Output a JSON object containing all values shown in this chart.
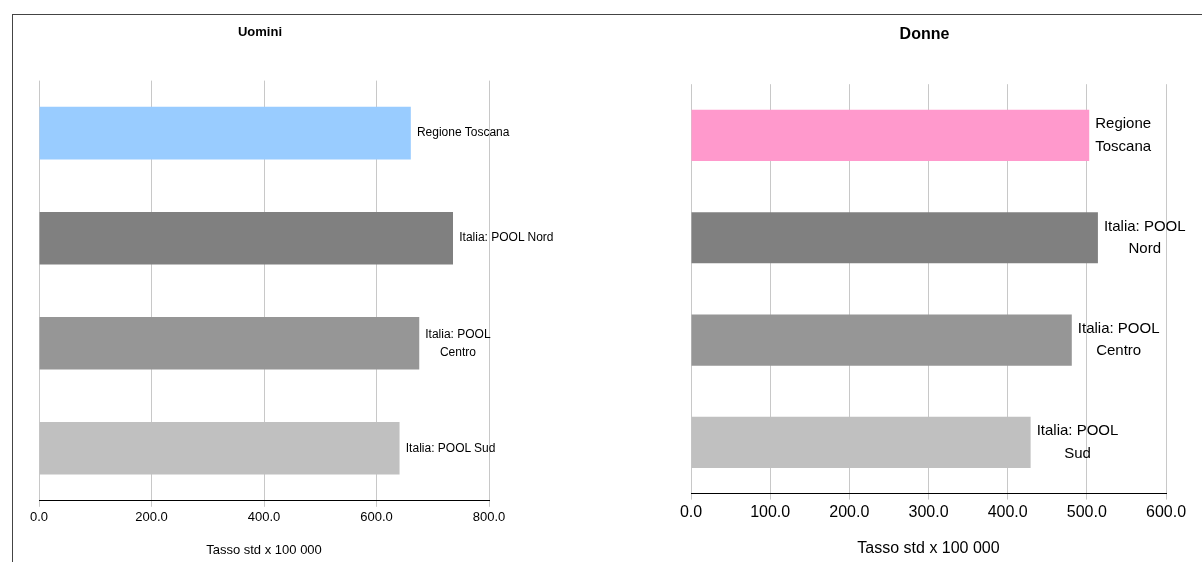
{
  "chart_data": [
    {
      "type": "bar",
      "orientation": "horizontal",
      "title": "Uomini",
      "xlabel": "Tasso std x 100 000",
      "categories": [
        "Regione Toscana",
        "Italia: POOL Nord",
        "Italia: POOL Centro",
        "Italia: POOL Sud"
      ],
      "values": [
        661,
        736,
        676,
        641
      ],
      "colors": [
        "#99ccff",
        "#808080",
        "#969696",
        "#c0c0c0"
      ],
      "xlim": [
        0,
        800
      ],
      "xticks": [
        {
          "value": 0,
          "label": "0.0"
        },
        {
          "value": 200,
          "label": "200.0"
        },
        {
          "value": 400,
          "label": "400.0"
        },
        {
          "value": 600,
          "label": "600.0"
        },
        {
          "value": 800,
          "label": "800.0"
        }
      ],
      "grid": "x",
      "tick_labels": "x",
      "legend": false
    },
    {
      "type": "bar",
      "orientation": "horizontal",
      "title": "Donne",
      "xlabel": "Tasso std x 100 000",
      "categories": [
        "Regione Toscana",
        "Italia: POOL Nord",
        "Italia: POOL Centro",
        "Italia: POOL Sud"
      ],
      "values": [
        503,
        514,
        481,
        429
      ],
      "colors": [
        "#ff99cc",
        "#808080",
        "#969696",
        "#c0c0c0"
      ],
      "xlim": [
        0,
        600
      ],
      "xticks": [
        {
          "value": 0,
          "label": "0.0"
        },
        {
          "value": 100,
          "label": "100.0"
        },
        {
          "value": 200,
          "label": "200.0"
        },
        {
          "value": 300,
          "label": "300.0"
        },
        {
          "value": 400,
          "label": "400.0"
        },
        {
          "value": 500,
          "label": "500.0"
        },
        {
          "value": 600,
          "label": "600.0"
        }
      ],
      "grid": "x",
      "tick_labels": "x",
      "legend": false
    }
  ]
}
